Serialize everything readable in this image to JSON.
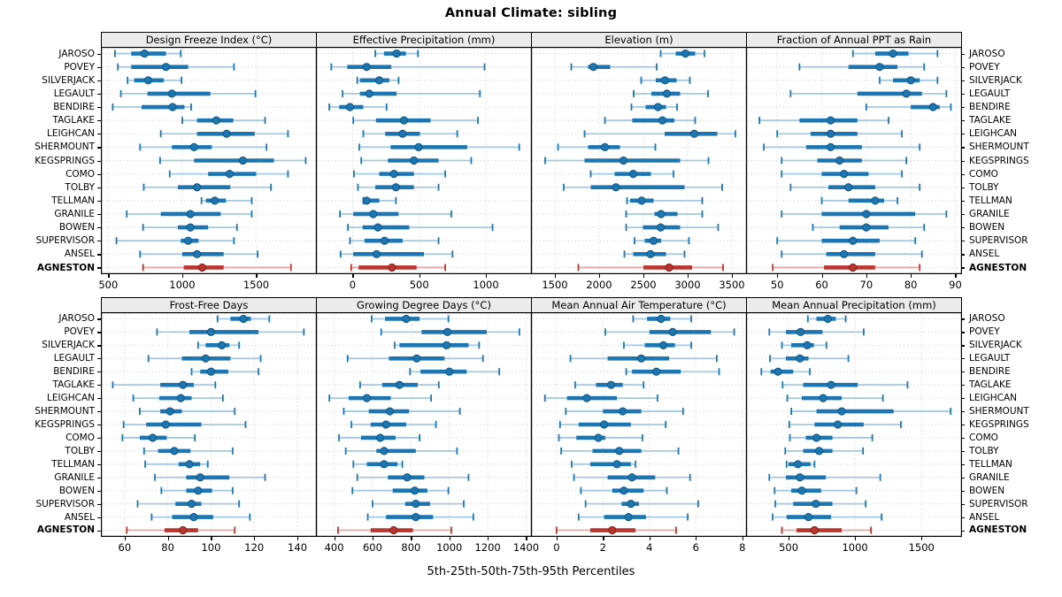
{
  "title": "Annual Climate: sibling",
  "caption": "5th-25th-50th-75th-95th Percentiles",
  "colors": {
    "blue": "#1c76b2",
    "blue_light": "#a3c9e2",
    "blue_dark": "#12557f",
    "red": "#bb352f",
    "red_light": "#e7a6a1",
    "red_dark": "#7e1f1a",
    "strip_bg": "#ebebeb",
    "grid": "#c9c9c9",
    "border": "#000000"
  },
  "chart_data": {
    "type": "interval-dotplot",
    "layout": [
      2,
      4
    ],
    "percentiles": [
      5,
      25,
      50,
      75,
      95
    ],
    "highlight_site": "AGNESTON",
    "sites": [
      "JAROSO",
      "POVEY",
      "SILVERJACK",
      "LEGAULT",
      "BENDIRE",
      "TAGLAKE",
      "LEIGHCAN",
      "SHERMOUNT",
      "KEGSPRINGS",
      "COMO",
      "TOLBY",
      "TELLMAN",
      "GRANILE",
      "BOWEN",
      "SUPERVISOR",
      "ANSEL",
      "AGNESTON"
    ],
    "panels": [
      {
        "title": "Design Freeze Index (°C)",
        "slug": "design-freeze-index",
        "xticks": [
          500,
          1000,
          1500
        ],
        "xlim": [
          450,
          1910
        ],
        "values": [
          [
            545,
            655,
            745,
            890,
            990
          ],
          [
            565,
            655,
            890,
            1040,
            1350
          ],
          [
            630,
            675,
            770,
            875,
            995
          ],
          [
            585,
            765,
            930,
            1190,
            1495
          ],
          [
            530,
            725,
            935,
            1015,
            1060
          ],
          [
            1000,
            1100,
            1230,
            1345,
            1560
          ],
          [
            855,
            1100,
            1300,
            1490,
            1715
          ],
          [
            715,
            930,
            1080,
            1200,
            1570
          ],
          [
            850,
            1080,
            1410,
            1620,
            1835
          ],
          [
            915,
            1175,
            1320,
            1500,
            1715
          ],
          [
            740,
            970,
            1100,
            1325,
            1600
          ],
          [
            1130,
            1160,
            1220,
            1295,
            1470
          ],
          [
            625,
            855,
            1055,
            1260,
            1470
          ],
          [
            735,
            970,
            1055,
            1175,
            1370
          ],
          [
            555,
            990,
            1040,
            1110,
            1350
          ],
          [
            715,
            1000,
            1100,
            1280,
            1510
          ],
          [
            735,
            1010,
            1135,
            1280,
            1735
          ]
        ]
      },
      {
        "title": "Effective Precipitation (mm)",
        "slug": "effective-precipitation",
        "xticks": [
          0,
          500,
          1000
        ],
        "xlim": [
          -275,
          1345
        ],
        "values": [
          [
            170,
            235,
            330,
            400,
            490
          ],
          [
            -160,
            -40,
            105,
            290,
            990
          ],
          [
            35,
            55,
            200,
            275,
            345
          ],
          [
            -75,
            55,
            125,
            330,
            955
          ],
          [
            -175,
            -100,
            -20,
            80,
            255
          ],
          [
            5,
            175,
            385,
            585,
            940
          ],
          [
            80,
            245,
            375,
            505,
            785
          ],
          [
            50,
            285,
            495,
            860,
            1250
          ],
          [
            65,
            265,
            460,
            645,
            890
          ],
          [
            10,
            200,
            310,
            460,
            695
          ],
          [
            40,
            170,
            325,
            460,
            645
          ],
          [
            80,
            95,
            105,
            200,
            325
          ],
          [
            -95,
            5,
            155,
            345,
            740
          ],
          [
            -35,
            75,
            190,
            425,
            1050
          ],
          [
            -20,
            90,
            240,
            375,
            645
          ],
          [
            -90,
            5,
            180,
            535,
            750
          ],
          [
            -10,
            45,
            295,
            480,
            695
          ]
        ]
      },
      {
        "title": "Elevation (m)",
        "slug": "elevation",
        "xticks": [
          1500,
          2000,
          2500,
          3000,
          3500
        ],
        "xlim": [
          1230,
          3670
        ],
        "values": [
          [
            2695,
            2865,
            2975,
            3085,
            3190
          ],
          [
            1685,
            1875,
            1935,
            2125,
            2650
          ],
          [
            2475,
            2640,
            2745,
            2875,
            3025
          ],
          [
            2390,
            2590,
            2765,
            2915,
            3230
          ],
          [
            2365,
            2525,
            2665,
            2755,
            2880
          ],
          [
            2065,
            2375,
            2715,
            2850,
            3085
          ],
          [
            1835,
            2740,
            3075,
            3335,
            3540
          ],
          [
            1535,
            1875,
            2065,
            2235,
            2635
          ],
          [
            1390,
            1835,
            2275,
            2915,
            3235
          ],
          [
            1905,
            2175,
            2385,
            2585,
            2840
          ],
          [
            1600,
            1905,
            2190,
            2965,
            3390
          ],
          [
            2315,
            2350,
            2480,
            2615,
            3165
          ],
          [
            2305,
            2625,
            2700,
            2885,
            3165
          ],
          [
            2305,
            2495,
            2695,
            2915,
            3345
          ],
          [
            2400,
            2515,
            2615,
            2700,
            3015
          ],
          [
            2285,
            2385,
            2580,
            2755,
            2965
          ],
          [
            1765,
            2500,
            2790,
            3050,
            3400
          ]
        ]
      },
      {
        "title": "Fraction of Annual PPT as Rain",
        "slug": "fraction-ppt-as-rain",
        "xticks": [
          50,
          60,
          70,
          80,
          90
        ],
        "xlim": [
          43,
          91.5
        ],
        "values": [
          [
            67,
            72,
            76,
            79.5,
            86
          ],
          [
            55,
            66,
            73,
            77,
            83
          ],
          [
            73,
            76,
            80,
            82,
            86
          ],
          [
            53,
            68,
            79,
            82.5,
            88
          ],
          [
            70,
            80,
            85,
            86.5,
            89
          ],
          [
            46,
            55,
            62,
            68,
            75
          ],
          [
            50,
            57.5,
            62,
            68,
            78
          ],
          [
            47,
            56.5,
            62,
            69,
            82
          ],
          [
            51,
            59,
            64,
            69,
            79
          ],
          [
            51,
            60,
            65,
            70.5,
            78
          ],
          [
            53,
            61.5,
            66,
            72,
            82
          ],
          [
            60,
            66,
            72,
            74,
            77
          ],
          [
            51,
            60,
            70,
            81,
            88
          ],
          [
            58,
            64,
            70,
            75,
            83
          ],
          [
            50,
            60,
            67,
            73,
            81
          ],
          [
            51,
            61,
            65,
            72,
            82.5
          ],
          [
            49,
            60.5,
            67,
            72,
            82
          ]
        ]
      },
      {
        "title": "Frost-Free Days",
        "slug": "frost-free-days",
        "xticks": [
          60,
          80,
          100,
          120,
          140
        ],
        "xlim": [
          49,
          149
        ],
        "values": [
          [
            103,
            109,
            115,
            118.5,
            127
          ],
          [
            75,
            90,
            100,
            122,
            143
          ],
          [
            94,
            97.5,
            105,
            108.5,
            113
          ],
          [
            71,
            86.5,
            97.5,
            109,
            123
          ],
          [
            91,
            95,
            100,
            108,
            122
          ],
          [
            54.5,
            76.5,
            87,
            92,
            102
          ],
          [
            64,
            76,
            86,
            91,
            105.5
          ],
          [
            67,
            76.5,
            81,
            86.5,
            111
          ],
          [
            59.5,
            70,
            79,
            95.5,
            116
          ],
          [
            59,
            67,
            73,
            79.5,
            92.5
          ],
          [
            69,
            75.5,
            83,
            90.5,
            110
          ],
          [
            69.5,
            85,
            90,
            95,
            98.5
          ],
          [
            74,
            88.5,
            95,
            108.5,
            125
          ],
          [
            77,
            88.5,
            94,
            100.5,
            110
          ],
          [
            66,
            83.5,
            91,
            95.5,
            113
          ],
          [
            72.5,
            82,
            92,
            101,
            118
          ],
          [
            61,
            78.5,
            87,
            94,
            111
          ]
        ]
      },
      {
        "title": "Growing Degree Days (°C)",
        "slug": "growing-degree-days",
        "xticks": [
          400,
          600,
          800,
          1000,
          1200,
          1400
        ],
        "xlim": [
          305,
          1430
        ],
        "values": [
          [
            595,
            665,
            775,
            845,
            995
          ],
          [
            645,
            855,
            990,
            1195,
            1365
          ],
          [
            715,
            740,
            985,
            1100,
            1155
          ],
          [
            470,
            685,
            830,
            975,
            1175
          ],
          [
            795,
            850,
            1000,
            1090,
            1260
          ],
          [
            535,
            650,
            740,
            835,
            945
          ],
          [
            375,
            475,
            570,
            695,
            905
          ],
          [
            450,
            580,
            690,
            790,
            1055
          ],
          [
            490,
            590,
            670,
            775,
            930
          ],
          [
            425,
            540,
            640,
            720,
            845
          ],
          [
            460,
            620,
            660,
            825,
            1040
          ],
          [
            500,
            570,
            660,
            730,
            755
          ],
          [
            520,
            680,
            780,
            870,
            1100
          ],
          [
            495,
            705,
            820,
            885,
            995
          ],
          [
            600,
            770,
            825,
            900,
            1075
          ],
          [
            575,
            670,
            825,
            915,
            1125
          ],
          [
            420,
            590,
            710,
            810,
            1010
          ]
        ]
      },
      {
        "title": "Mean Annual Air Temperature (°C)",
        "slug": "mean-annual-air-temperature",
        "xticks": [
          0,
          2,
          4,
          6,
          8
        ],
        "xlim": [
          -1.1,
          8.2
        ],
        "values": [
          [
            3.3,
            3.9,
            4.5,
            4.9,
            5.8
          ],
          [
            2.1,
            4.0,
            5.0,
            6.65,
            7.65
          ],
          [
            2.9,
            3.8,
            4.6,
            5.1,
            5.8
          ],
          [
            0.6,
            2.2,
            3.65,
            4.85,
            6.9
          ],
          [
            3.0,
            3.25,
            4.3,
            5.35,
            7.0
          ],
          [
            0.8,
            1.7,
            2.35,
            2.85,
            3.75
          ],
          [
            -0.5,
            0.45,
            1.3,
            2.6,
            4.35
          ],
          [
            0.4,
            2.0,
            2.85,
            3.65,
            5.45
          ],
          [
            0.15,
            0.95,
            2.05,
            3.2,
            4.7
          ],
          [
            0.1,
            0.85,
            1.8,
            2.1,
            3.7
          ],
          [
            0.2,
            1.55,
            2.7,
            3.65,
            5.25
          ],
          [
            0.65,
            1.45,
            2.6,
            3.2,
            3.4
          ],
          [
            0.75,
            2.2,
            3.25,
            4.25,
            5.75
          ],
          [
            1.05,
            2.4,
            2.9,
            3.75,
            4.75
          ],
          [
            1.25,
            2.8,
            3.2,
            3.55,
            6.1
          ],
          [
            0.95,
            2.05,
            3.1,
            3.85,
            5.65
          ],
          [
            0.0,
            1.45,
            2.4,
            3.4,
            5.15
          ]
        ]
      },
      {
        "title": "Mean Annual Precipitation (mm)",
        "slug": "mean-annual-precipitation",
        "xticks": [
          500,
          1000,
          1500
        ],
        "xlim": [
          180,
          1805
        ],
        "values": [
          [
            645,
            710,
            795,
            855,
            930
          ],
          [
            355,
            480,
            590,
            755,
            1065
          ],
          [
            450,
            520,
            640,
            690,
            785
          ],
          [
            360,
            480,
            585,
            650,
            950
          ],
          [
            295,
            365,
            420,
            535,
            660
          ],
          [
            455,
            610,
            820,
            1020,
            1395
          ],
          [
            490,
            600,
            760,
            900,
            1210
          ],
          [
            520,
            710,
            900,
            1290,
            1720
          ],
          [
            505,
            695,
            870,
            1065,
            1345
          ],
          [
            510,
            630,
            710,
            830,
            1130
          ],
          [
            475,
            610,
            730,
            830,
            1060
          ],
          [
            485,
            500,
            570,
            665,
            695
          ],
          [
            355,
            480,
            585,
            780,
            1190
          ],
          [
            395,
            520,
            600,
            745,
            1010
          ],
          [
            400,
            535,
            705,
            830,
            1080
          ],
          [
            380,
            485,
            650,
            820,
            1200
          ],
          [
            450,
            560,
            695,
            900,
            1120
          ]
        ]
      }
    ]
  }
}
